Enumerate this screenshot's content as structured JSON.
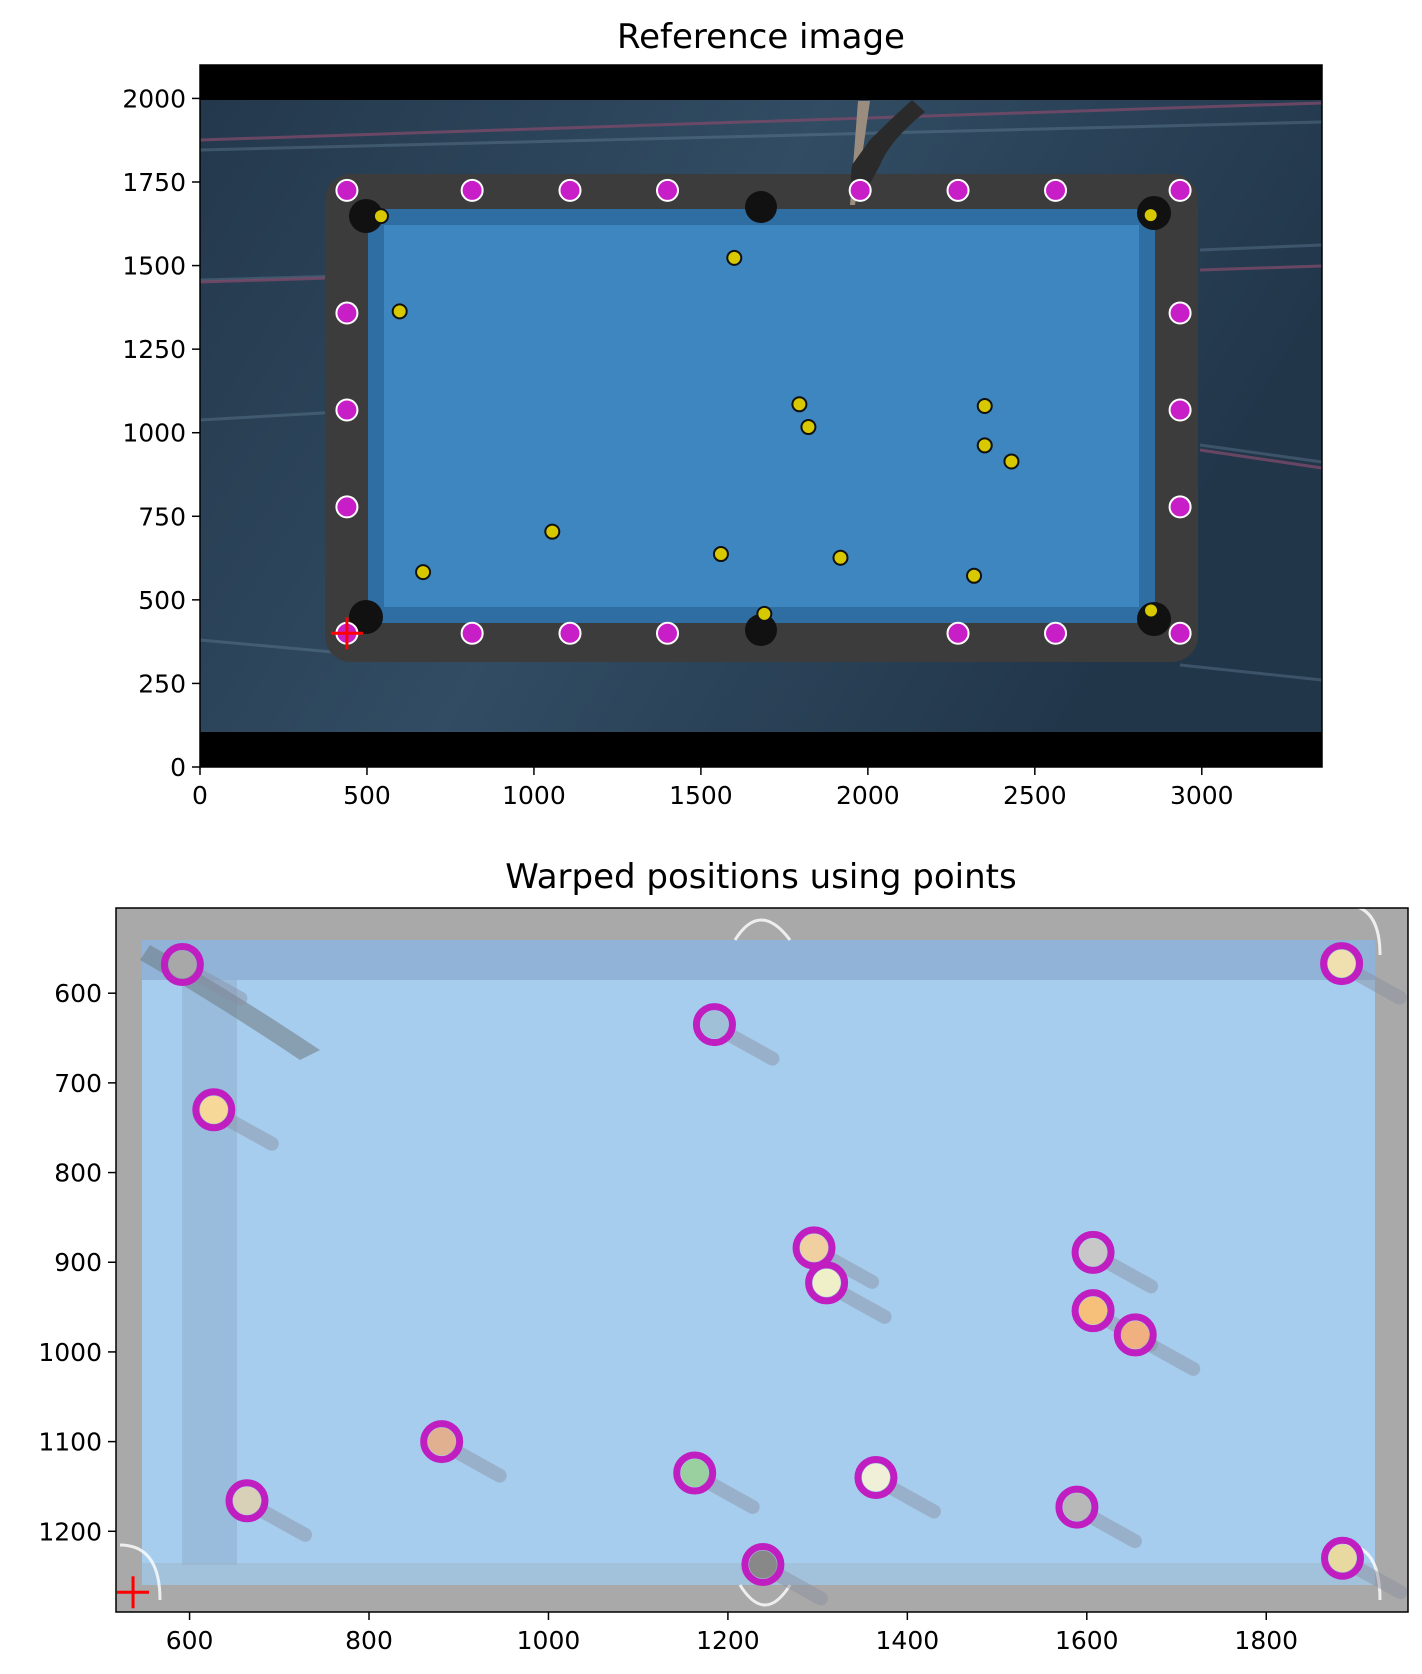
{
  "colors": {
    "felt": "#3d86c0",
    "felt_shade": "#2f6ea3",
    "rail": "#3a3a3a",
    "background": "#20384f",
    "diamond_marker": "#c81ec8",
    "ball_marker": "#d8c800",
    "warped_felt": "#a6cdee",
    "warped_rail": "#a9a9a9",
    "warped_ring": "#c01ec0",
    "cross": "#ff0000"
  },
  "chart_data": [
    {
      "type": "scatter",
      "title": "Reference image",
      "xlim": [
        0,
        3360
      ],
      "ylim": [
        2100,
        0
      ],
      "x_ticks": [
        "0",
        "500",
        "1000",
        "1500",
        "2000",
        "2500",
        "3000"
      ],
      "x_tick_values": [
        0,
        500,
        1000,
        1500,
        2000,
        2500,
        3000
      ],
      "y_ticks": [
        "0",
        "250",
        "500",
        "750",
        "1000",
        "1250",
        "1500",
        "1750",
        "2000"
      ],
      "y_tick_values": [
        0,
        250,
        500,
        750,
        1000,
        1250,
        1500,
        1750,
        2000
      ],
      "grid": false,
      "reference_cross": [
        440,
        400
      ],
      "diamond_points": [
        [
          440,
          400
        ],
        [
          815,
          400
        ],
        [
          1108,
          400
        ],
        [
          1400,
          400
        ],
        [
          2270,
          400
        ],
        [
          2562,
          400
        ],
        [
          2935,
          400
        ],
        [
          440,
          1725
        ],
        [
          815,
          1725
        ],
        [
          1108,
          1725
        ],
        [
          1400,
          1725
        ],
        [
          1977,
          1725
        ],
        [
          2270,
          1725
        ],
        [
          2562,
          1725
        ],
        [
          2935,
          1725
        ],
        [
          440,
          778
        ],
        [
          440,
          1068
        ],
        [
          440,
          1358
        ],
        [
          2935,
          778
        ],
        [
          2935,
          1068
        ],
        [
          2935,
          1358
        ]
      ],
      "ball_points": [
        [
          1690,
          458
        ],
        [
          2848,
          468
        ],
        [
          668,
          583
        ],
        [
          2318,
          572
        ],
        [
          1055,
          704
        ],
        [
          1560,
          637
        ],
        [
          1918,
          626
        ],
        [
          2430,
          914
        ],
        [
          2350,
          962
        ],
        [
          1822,
          1017
        ],
        [
          1795,
          1085
        ],
        [
          2350,
          1080
        ],
        [
          598,
          1363
        ],
        [
          1600,
          1523
        ],
        [
          542,
          1648
        ],
        [
          2847,
          1651
        ]
      ]
    },
    {
      "type": "scatter",
      "title": "Warped positions using points",
      "xlim": [
        518,
        1958
      ],
      "ylim": [
        505,
        1290
      ],
      "x_ticks": [
        "600",
        "800",
        "1000",
        "1200",
        "1400",
        "1600",
        "1800"
      ],
      "x_tick_values": [
        600,
        800,
        1000,
        1200,
        1400,
        1600,
        1800
      ],
      "y_ticks": [
        "600",
        "700",
        "800",
        "900",
        "1000",
        "1100",
        "1200"
      ],
      "y_tick_values": [
        600,
        700,
        800,
        900,
        1000,
        1100,
        1200
      ],
      "grid": false,
      "reference_cross": [
        537,
        1268
      ],
      "warped_points": [
        [
          1239,
          1237
        ],
        [
          1885,
          1230
        ],
        [
          664,
          1166
        ],
        [
          1589,
          1173
        ],
        [
          881,
          1100
        ],
        [
          1163,
          1135
        ],
        [
          1365,
          1140
        ],
        [
          1654,
          981
        ],
        [
          1607,
          954
        ],
        [
          1310,
          923
        ],
        [
          1296,
          884
        ],
        [
          1607,
          889
        ],
        [
          627,
          730
        ],
        [
          1185,
          635
        ],
        [
          592,
          568
        ],
        [
          1884,
          567
        ]
      ]
    }
  ]
}
